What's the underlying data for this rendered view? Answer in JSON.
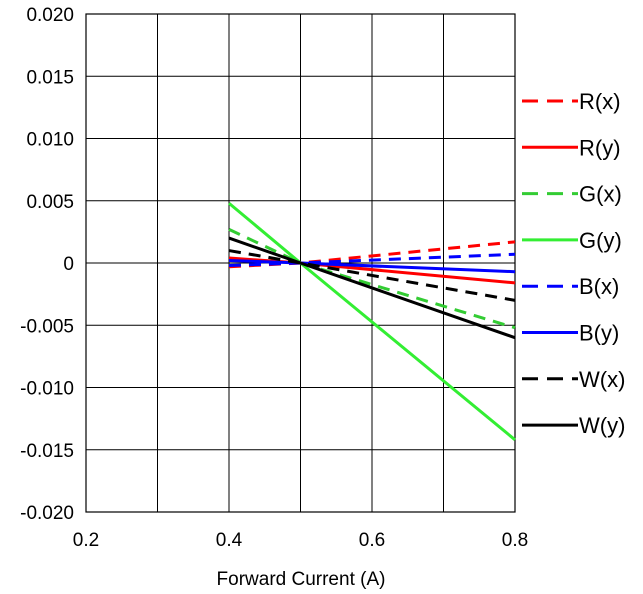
{
  "chart_data": {
    "type": "line",
    "title": "",
    "xlabel": "Forward Current (A)",
    "ylabel": "",
    "xlim": [
      0.2,
      0.8
    ],
    "ylim": [
      -0.02,
      0.02
    ],
    "x_ticks": [
      0.2,
      0.3,
      0.4,
      0.5,
      0.6,
      0.7,
      0.8
    ],
    "x_tick_labels": [
      "0.2",
      "",
      "0.4",
      "",
      "0.6",
      "",
      "0.8"
    ],
    "y_ticks": [
      0.02,
      0.015,
      0.01,
      0.005,
      0,
      -0.005,
      -0.01,
      -0.015,
      -0.02
    ],
    "y_tick_labels": [
      "0.020",
      "0.015",
      "0.010",
      "0.005",
      "0",
      "-0.005",
      "-0.010",
      "-0.015",
      "-0.020"
    ],
    "grid": true,
    "legend_position": "right",
    "series": [
      {
        "name": "R(x)",
        "color": "#ff0000",
        "dash": true,
        "x": [
          0.4,
          0.5,
          0.8
        ],
        "y": [
          -0.0003,
          0,
          0.0017
        ]
      },
      {
        "name": "R(y)",
        "color": "#ff0000",
        "dash": false,
        "x": [
          0.4,
          0.5,
          0.8
        ],
        "y": [
          0.0004,
          0,
          -0.0016
        ]
      },
      {
        "name": "G(x)",
        "color": "#33cc33",
        "dash": true,
        "x": [
          0.4,
          0.5,
          0.8
        ],
        "y": [
          0.0027,
          0,
          -0.0052
        ]
      },
      {
        "name": "G(y)",
        "color": "#33ee33",
        "dash": false,
        "x": [
          0.4,
          0.5,
          0.8
        ],
        "y": [
          0.0048,
          0,
          -0.0142
        ]
      },
      {
        "name": "B(x)",
        "color": "#0000ff",
        "dash": true,
        "x": [
          0.4,
          0.5,
          0.8
        ],
        "y": [
          -0.0002,
          0,
          0.0007
        ]
      },
      {
        "name": "B(y)",
        "color": "#0000ff",
        "dash": false,
        "x": [
          0.4,
          0.5,
          0.8
        ],
        "y": [
          0.0002,
          0,
          -0.0007
        ]
      },
      {
        "name": "W(x)",
        "color": "#000000",
        "dash": true,
        "x": [
          0.4,
          0.5,
          0.8
        ],
        "y": [
          0.001,
          0,
          -0.003
        ]
      },
      {
        "name": "W(y)",
        "color": "#000000",
        "dash": false,
        "x": [
          0.4,
          0.5,
          0.8
        ],
        "y": [
          0.002,
          0,
          -0.006
        ]
      }
    ]
  }
}
